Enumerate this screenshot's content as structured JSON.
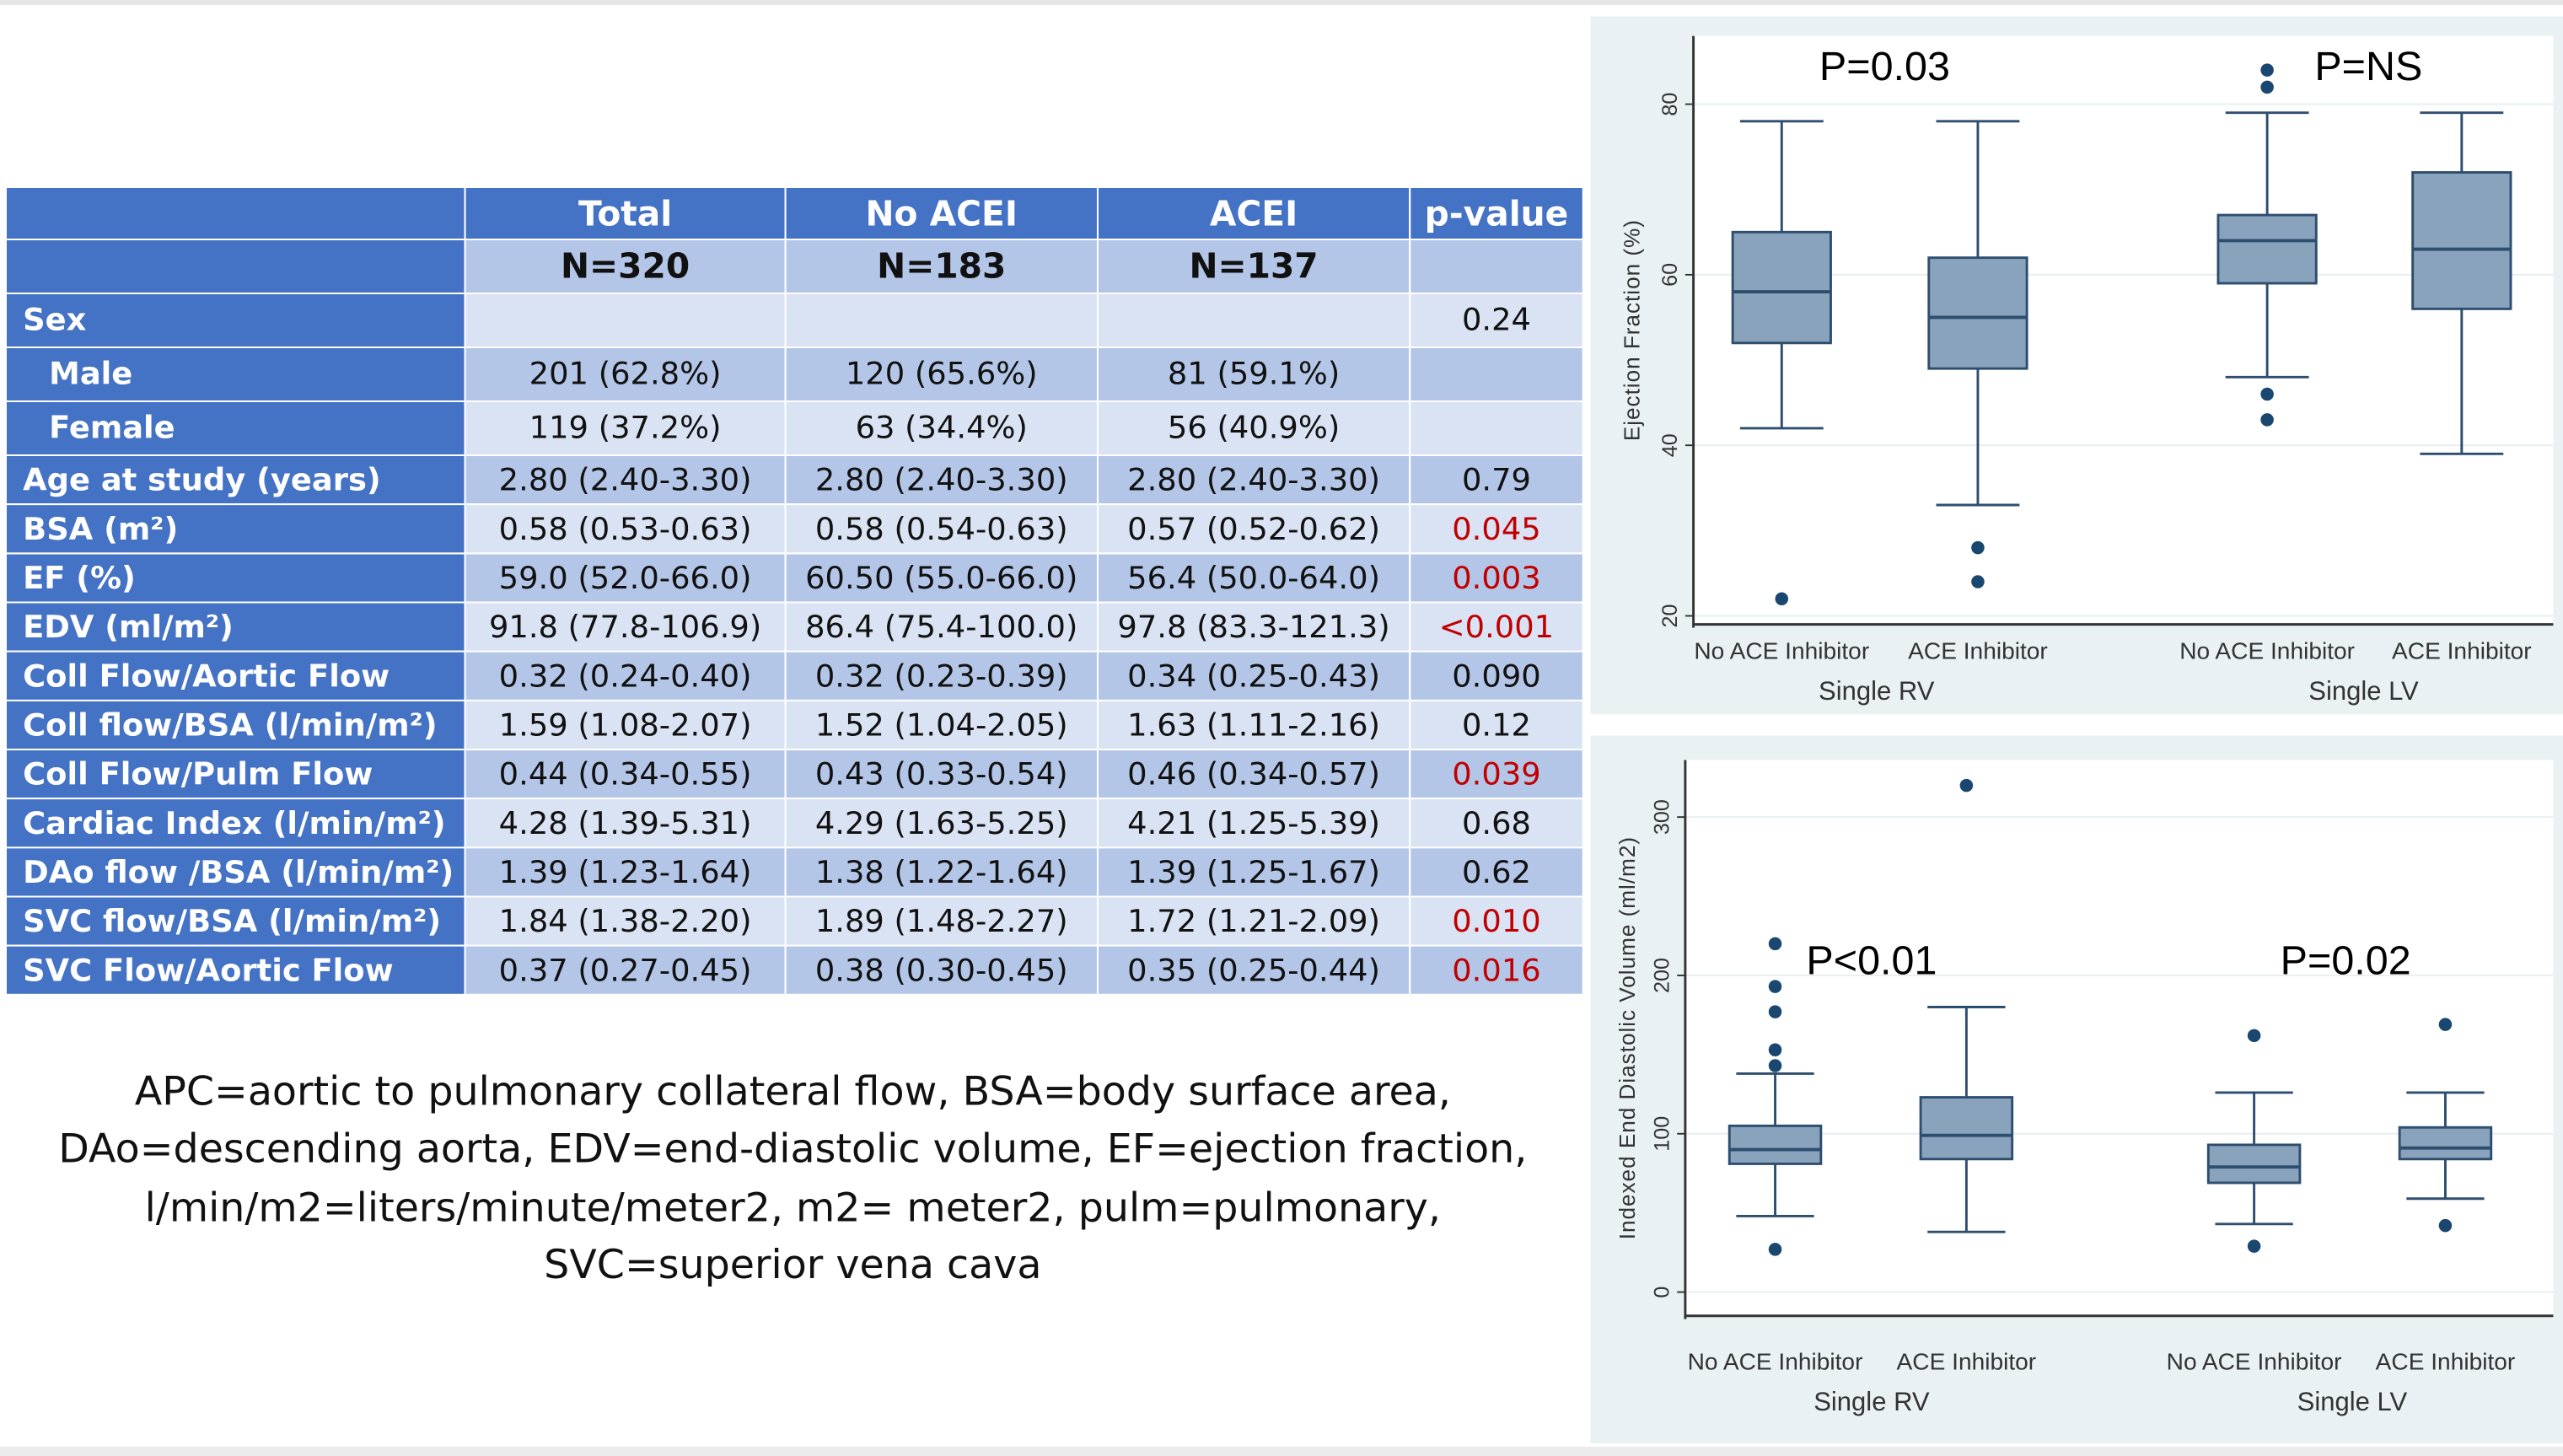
{
  "table": {
    "header": [
      "",
      "Total",
      "No ACEI",
      "ACEI",
      "p-value"
    ],
    "n_row": [
      "",
      "N=320",
      "N=183",
      "N=137",
      ""
    ],
    "rows": [
      {
        "label": "Sex",
        "indent": false,
        "values": [
          "",
          "",
          "",
          "0.24"
        ],
        "sig": false
      },
      {
        "label": "Male",
        "indent": true,
        "values": [
          "201 (62.8%)",
          "120 (65.6%)",
          "81 (59.1%)",
          ""
        ],
        "sig": false
      },
      {
        "label": "Female",
        "indent": true,
        "values": [
          "119 (37.2%)",
          "63 (34.4%)",
          "56 (40.9%)",
          ""
        ],
        "sig": false
      },
      {
        "label": "Age at study (years)",
        "indent": false,
        "values": [
          "2.80 (2.40-3.30)",
          "2.80 (2.40-3.30)",
          "2.80 (2.40-3.30)",
          "0.79"
        ],
        "sig": false
      },
      {
        "label": "BSA (m²)",
        "indent": false,
        "values": [
          "0.58 (0.53-0.63)",
          "0.58 (0.54-0.63)",
          "0.57 (0.52-0.62)",
          "0.045"
        ],
        "sig": true
      },
      {
        "label": "EF (%)",
        "indent": false,
        "values": [
          "59.0 (52.0-66.0)",
          "60.50 (55.0-66.0)",
          "56.4 (50.0-64.0)",
          "0.003"
        ],
        "sig": true
      },
      {
        "label": "EDV (ml/m²)",
        "indent": false,
        "values": [
          "91.8 (77.8-106.9)",
          "86.4 (75.4-100.0)",
          "97.8 (83.3-121.3)",
          "<0.001"
        ],
        "sig": true
      },
      {
        "label": "Coll Flow/Aortic Flow",
        "indent": false,
        "values": [
          "0.32 (0.24-0.40)",
          "0.32 (0.23-0.39)",
          "0.34 (0.25-0.43)",
          "0.090"
        ],
        "sig": false
      },
      {
        "label": "Coll flow/BSA (l/min/m²)",
        "indent": false,
        "values": [
          "1.59 (1.08-2.07)",
          "1.52 (1.04-2.05)",
          "1.63 (1.11-2.16)",
          "0.12"
        ],
        "sig": false
      },
      {
        "label": "Coll Flow/Pulm Flow",
        "indent": false,
        "values": [
          "0.44 (0.34-0.55)",
          "0.43 (0.33-0.54)",
          "0.46 (0.34-0.57)",
          "0.039"
        ],
        "sig": true
      },
      {
        "label": "Cardiac Index (l/min/m²)",
        "indent": false,
        "values": [
          "4.28 (1.39-5.31)",
          "4.29 (1.63-5.25)",
          "4.21 (1.25-5.39)",
          "0.68"
        ],
        "sig": false
      },
      {
        "label": "DAo flow /BSA (l/min/m²)",
        "indent": false,
        "values": [
          "1.39 (1.23-1.64)",
          "1.38 (1.22-1.64)",
          "1.39 (1.25-1.67)",
          "0.62"
        ],
        "sig": false
      },
      {
        "label": "SVC flow/BSA (l/min/m²)",
        "indent": false,
        "values": [
          "1.84 (1.38-2.20)",
          "1.89 (1.48-2.27)",
          "1.72 (1.21-2.09)",
          "0.010"
        ],
        "sig": true
      },
      {
        "label": "SVC Flow/Aortic Flow",
        "indent": false,
        "values": [
          "0.37 (0.27-0.45)",
          "0.38 (0.30-0.45)",
          "0.35 (0.25-0.44)",
          "0.016"
        ],
        "sig": true
      }
    ]
  },
  "footnote": [
    "APC=aortic to pulmonary collateral flow, BSA=body surface area,",
    "DAo=descending aorta, EDV=end-diastolic volume, EF=ejection fraction,",
    "l/min/m2=liters/minute/meter2, m2= meter2, pulm=pulmonary,",
    "SVC=superior vena cava"
  ],
  "colors": {
    "header": "#4472C4",
    "row_dark": "#B4C6E7",
    "row_light": "#DAE3F3",
    "significant": "#C00000",
    "box_fill": "#8AA3BD",
    "box_stroke": "#2E4E6F",
    "outlier": "#1A4770"
  },
  "chart_data": [
    {
      "type": "box",
      "ylabel": "Ejection Fraction (%)",
      "ylim": [
        19,
        88
      ],
      "yticks": [
        20,
        40,
        60,
        80
      ],
      "categories": [
        "No ACE Inhibitor",
        "ACE Inhibitor",
        "No ACE Inhibitor",
        "ACE Inhibitor"
      ],
      "groups": [
        "Single RV",
        "Single LV"
      ],
      "annotations": [
        "P=0.03",
        "P=NS"
      ],
      "grid": true,
      "boxes": [
        {
          "whisker_low": 42,
          "q1": 52,
          "median": 58,
          "q3": 65,
          "whisker_high": 78,
          "outliers": [
            22
          ]
        },
        {
          "whisker_low": 33,
          "q1": 49,
          "median": 55,
          "q3": 62,
          "whisker_high": 78,
          "outliers": [
            28,
            24
          ]
        },
        {
          "whisker_low": 48,
          "q1": 59,
          "median": 64,
          "q3": 67,
          "whisker_high": 79,
          "outliers": [
            84,
            82,
            46,
            43
          ]
        },
        {
          "whisker_low": 39,
          "q1": 56,
          "median": 63,
          "q3": 72,
          "whisker_high": 79,
          "outliers": []
        }
      ]
    },
    {
      "type": "box",
      "ylabel": "Indexed End Diastolic Volume (ml/m2)",
      "ylim": [
        -15,
        336
      ],
      "yticks": [
        0,
        100,
        200,
        300
      ],
      "categories": [
        "No ACE Inhibitor",
        "ACE Inhibitor",
        "No ACE Inhibitor",
        "ACE Inhibitor"
      ],
      "groups": [
        "Single RV",
        "Single LV"
      ],
      "annotations": [
        "P<0.01",
        "P=0.02"
      ],
      "grid": true,
      "boxes": [
        {
          "whisker_low": 48,
          "q1": 81,
          "median": 90,
          "q3": 105,
          "whisker_high": 138,
          "outliers": [
            220,
            193,
            177,
            153,
            143,
            27
          ]
        },
        {
          "whisker_low": 38,
          "q1": 84,
          "median": 99,
          "q3": 123,
          "whisker_high": 180,
          "outliers": [
            320
          ]
        },
        {
          "whisker_low": 43,
          "q1": 69,
          "median": 79,
          "q3": 93,
          "whisker_high": 126,
          "outliers": [
            162,
            29
          ]
        },
        {
          "whisker_low": 59,
          "q1": 84,
          "median": 91,
          "q3": 104,
          "whisker_high": 126,
          "outliers": [
            169,
            42
          ]
        }
      ]
    }
  ]
}
